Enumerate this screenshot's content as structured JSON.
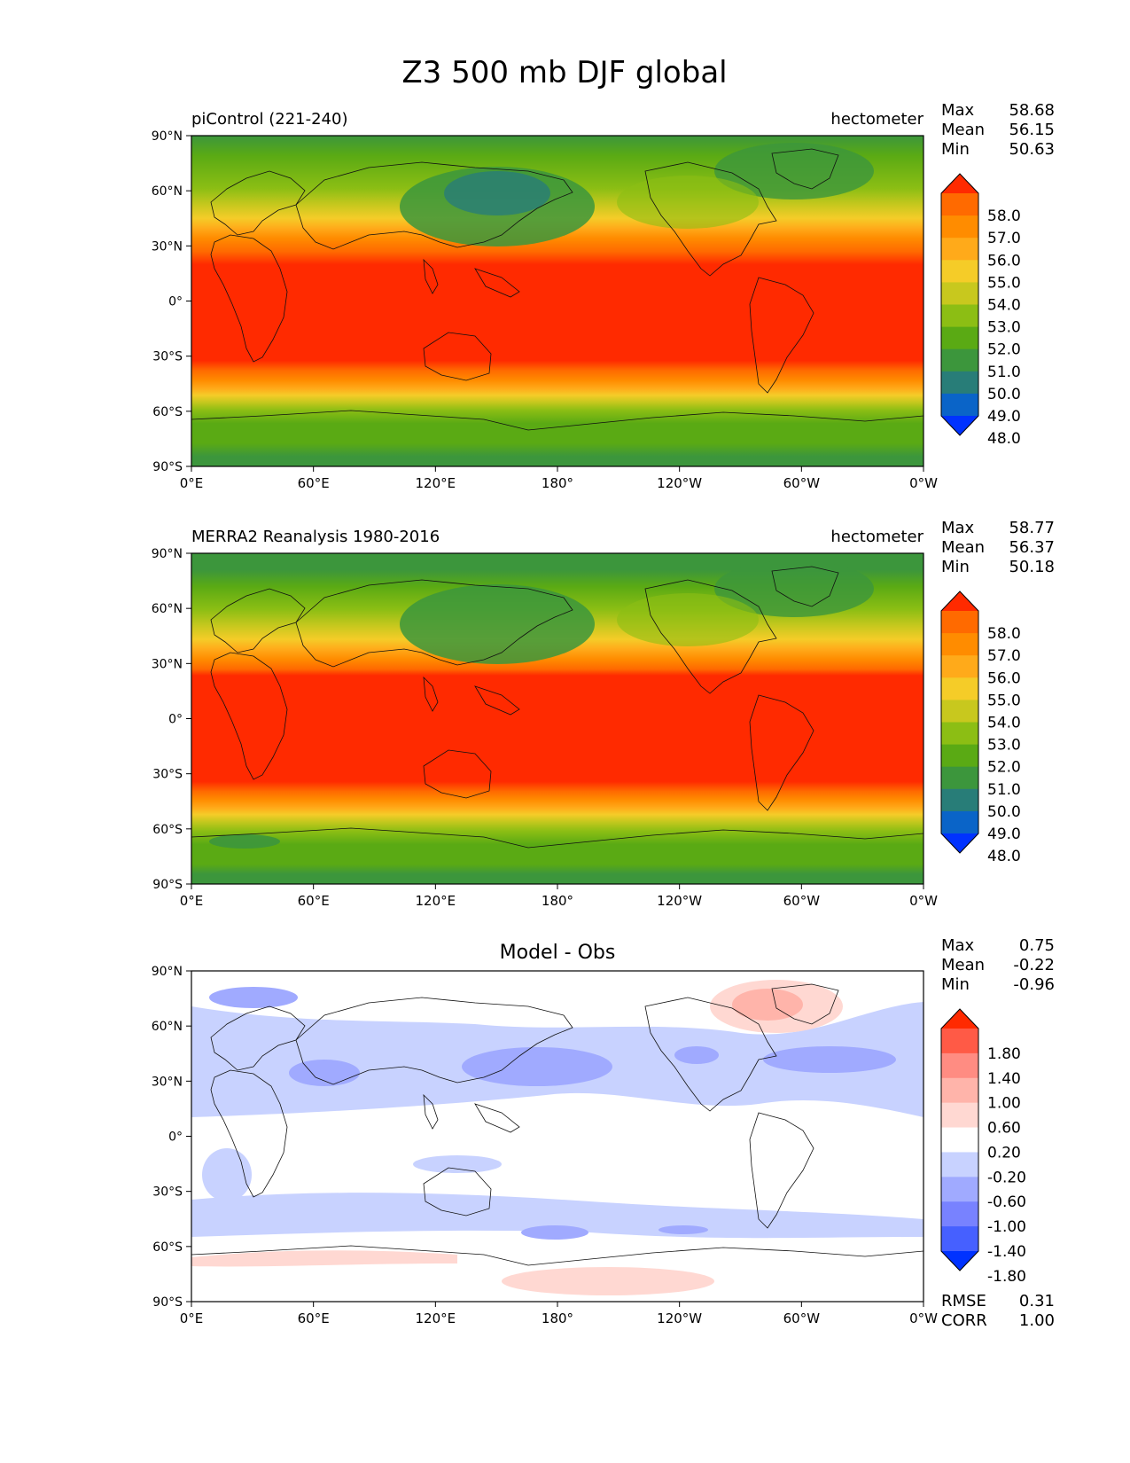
{
  "title": "Z3 500 mb DJF global",
  "axes": {
    "lat_ticks": [
      "90°N",
      "60°N",
      "30°N",
      "0°",
      "30°S",
      "60°S",
      "90°S"
    ],
    "lon_ticks": [
      "0°E",
      "60°E",
      "120°E",
      "180°",
      "120°W",
      "60°W",
      "0°W"
    ]
  },
  "panels": [
    {
      "left_title": "piControl (221-240)",
      "center_title": "",
      "right_title": "hectometer",
      "stats": [
        {
          "label": "Max",
          "value": "58.68"
        },
        {
          "label": "Mean",
          "value": "56.15"
        },
        {
          "label": "Min",
          "value": "50.63"
        }
      ],
      "colorbar": {
        "labels": [
          "58.0",
          "57.0",
          "56.0",
          "55.0",
          "54.0",
          "53.0",
          "52.0",
          "51.0",
          "50.0",
          "49.0",
          "48.0"
        ],
        "colors": [
          "#ff2a00",
          "#ff6a00",
          "#ff8c00",
          "#ffaa1a",
          "#f5cc28",
          "#c8c81e",
          "#8cbe14",
          "#5aaa14",
          "#3c963c",
          "#287d78",
          "#0a64c8",
          "#0032ff"
        ]
      },
      "extra_stats": []
    },
    {
      "left_title": "MERRA2 Reanalysis 1980-2016",
      "center_title": "",
      "right_title": "hectometer",
      "stats": [
        {
          "label": "Max",
          "value": "58.77"
        },
        {
          "label": "Mean",
          "value": "56.37"
        },
        {
          "label": "Min",
          "value": "50.18"
        }
      ],
      "colorbar": {
        "labels": [
          "58.0",
          "57.0",
          "56.0",
          "55.0",
          "54.0",
          "53.0",
          "52.0",
          "51.0",
          "50.0",
          "49.0",
          "48.0"
        ],
        "colors": [
          "#ff2a00",
          "#ff6a00",
          "#ff8c00",
          "#ffaa1a",
          "#f5cc28",
          "#c8c81e",
          "#8cbe14",
          "#5aaa14",
          "#3c963c",
          "#287d78",
          "#0a64c8",
          "#0032ff"
        ]
      },
      "extra_stats": []
    },
    {
      "left_title": "",
      "center_title": "Model - Obs",
      "right_title": "",
      "stats": [
        {
          "label": "Max",
          "value": "0.75"
        },
        {
          "label": "Mean",
          "value": "-0.22"
        },
        {
          "label": "Min",
          "value": "-0.96"
        }
      ],
      "colorbar": {
        "labels": [
          "1.80",
          "1.40",
          "1.00",
          "0.60",
          "0.20",
          "-0.20",
          "-0.60",
          "-1.00",
          "-1.40",
          "-1.80"
        ],
        "colors": [
          "#ff2a00",
          "#ff5a46",
          "#ff8c82",
          "#ffb4aa",
          "#ffd8d2",
          "#ffffff",
          "#c8d2ff",
          "#a0aaff",
          "#7882ff",
          "#4660ff",
          "#0032ff"
        ]
      },
      "extra_stats": [
        {
          "label": "RMSE",
          "value": "0.31"
        },
        {
          "label": "CORR",
          "value": "1.00"
        }
      ]
    }
  ]
}
